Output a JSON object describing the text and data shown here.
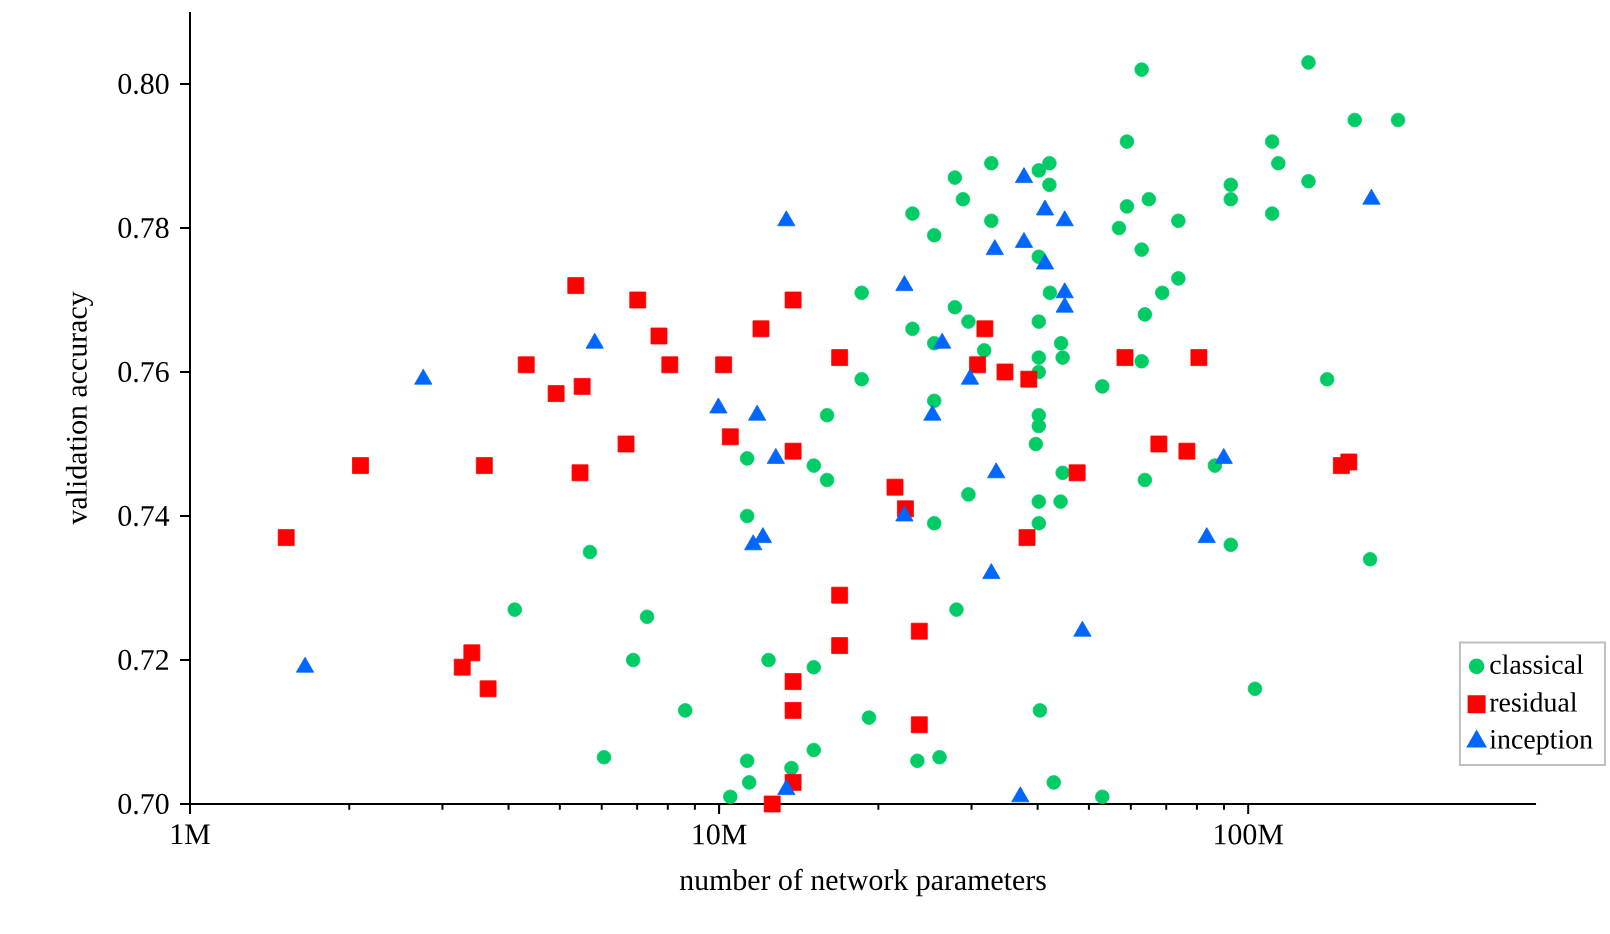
{
  "chart_data": {
    "type": "scatter",
    "xlabel": "number of network parameters",
    "ylabel": "validation accuracy",
    "log": "x",
    "legend": "bottom right",
    "grid": false,
    "xlim": [
      1,
      350
    ],
    "ylim": [
      0.7,
      0.81
    ],
    "xticks": [
      {
        "value": 1,
        "label": "1M"
      },
      {
        "value": 10,
        "label": "10M"
      },
      {
        "value": 100,
        "label": "100M"
      }
    ],
    "yticks": [
      {
        "value": 0.7,
        "label": "0.70"
      },
      0.72,
      0.74,
      0.76,
      0.78,
      {
        "value": 0.8,
        "label": "0.80"
      }
    ],
    "series": [
      {
        "name": "classical",
        "color": "#00cc66",
        "marker": "circle",
        "x": [
          5.7,
          4.11,
          7.31,
          6.88,
          6.06,
          32.7,
          27.9,
          28.9,
          23.2,
          25.5,
          32.7,
          40.2,
          40.2,
          18.6,
          27.9,
          29.6,
          23.2,
          25.5,
          31.7,
          18.6,
          25.5,
          16.0,
          11.3,
          15.1,
          16.0,
          29.6,
          11.3,
          25.5,
          28.1,
          12.4,
          15.1,
          8.63,
          19.2,
          11.3,
          11.4,
          10.5,
          13.7,
          15.1,
          23.7,
          26.1,
          40.2,
          40.2,
          40.2,
          40.2,
          40.2,
          39.7,
          40.2,
          40.2,
          40.4,
          62.9,
          130,
          159,
          192,
          59.0,
          111,
          114,
          42.1,
          42.1,
          92.7,
          130,
          64.9,
          59.0,
          92.7,
          73.8,
          111,
          57.0,
          62.9,
          42.2,
          68.8,
          73.8,
          63.8,
          44.3,
          44.6,
          62.9,
          53.0,
          141,
          44.6,
          63.8,
          86.5,
          44.2,
          92.7,
          170,
          103,
          42.9,
          53.0
        ],
        "values": [
          0.735,
          0.727,
          0.726,
          0.72,
          0.7065,
          0.789,
          0.787,
          0.784,
          0.782,
          0.779,
          0.781,
          0.788,
          0.776,
          0.771,
          0.769,
          0.767,
          0.766,
          0.764,
          0.763,
          0.759,
          0.756,
          0.754,
          0.748,
          0.747,
          0.745,
          0.743,
          0.74,
          0.739,
          0.727,
          0.72,
          0.719,
          0.713,
          0.712,
          0.706,
          0.703,
          0.701,
          0.705,
          0.7075,
          0.706,
          0.7065,
          0.767,
          0.762,
          0.76,
          0.754,
          0.7525,
          0.75,
          0.742,
          0.739,
          0.713,
          0.802,
          0.803,
          0.795,
          0.795,
          0.792,
          0.792,
          0.789,
          0.789,
          0.786,
          0.786,
          0.7865,
          0.784,
          0.783,
          0.784,
          0.781,
          0.782,
          0.78,
          0.777,
          0.771,
          0.771,
          0.773,
          0.768,
          0.764,
          0.762,
          0.7615,
          0.758,
          0.759,
          0.746,
          0.745,
          0.747,
          0.742,
          0.736,
          0.734,
          0.716,
          0.703,
          0.701
        ]
      },
      {
        "name": "residual",
        "color": "#ff0000",
        "marker": "square",
        "x": [
          5.36,
          7.02,
          7.7,
          4.32,
          4.92,
          5.51,
          6.67,
          2.1,
          3.6,
          5.46,
          1.52,
          3.41,
          3.27,
          3.66,
          8.07,
          10.2,
          12.0,
          13.8,
          16.9,
          10.5,
          13.8,
          21.5,
          22.5,
          16.9,
          16.9,
          13.8,
          13.8,
          13.8,
          12.6,
          23.9,
          23.9,
          31.8,
          30.8,
          34.7,
          38.5,
          38.2,
          58.5,
          80.7,
          67.8,
          76.6,
          47.5,
          155,
          150
        ],
        "values": [
          0.772,
          0.77,
          0.765,
          0.761,
          0.757,
          0.758,
          0.75,
          0.747,
          0.747,
          0.746,
          0.737,
          0.721,
          0.719,
          0.716,
          0.761,
          0.761,
          0.766,
          0.77,
          0.762,
          0.751,
          0.749,
          0.744,
          0.741,
          0.729,
          0.722,
          0.717,
          0.713,
          0.703,
          0.7,
          0.724,
          0.711,
          0.766,
          0.761,
          0.76,
          0.759,
          0.737,
          0.762,
          0.762,
          0.75,
          0.749,
          0.746,
          0.7475,
          0.747
        ]
      },
      {
        "name": "inception",
        "color": "#0066ff",
        "marker": "triangle",
        "x": [
          5.82,
          2.76,
          1.65,
          13.4,
          22.4,
          26.4,
          29.8,
          37.7,
          33.2,
          37.7,
          9.97,
          11.8,
          12.8,
          25.3,
          33.4,
          22.4,
          11.6,
          12.1,
          32.7,
          13.4,
          37.1,
          41.3,
          45.0,
          41.3,
          45.0,
          45.0,
          89.9,
          83.5,
          48.6,
          171
        ],
        "values": [
          0.764,
          0.759,
          0.719,
          0.781,
          0.772,
          0.764,
          0.759,
          0.787,
          0.777,
          0.778,
          0.755,
          0.754,
          0.748,
          0.754,
          0.746,
          0.74,
          0.736,
          0.737,
          0.732,
          0.702,
          0.701,
          0.7825,
          0.781,
          0.775,
          0.771,
          0.769,
          0.748,
          0.737,
          0.724,
          0.784
        ]
      }
    ]
  }
}
